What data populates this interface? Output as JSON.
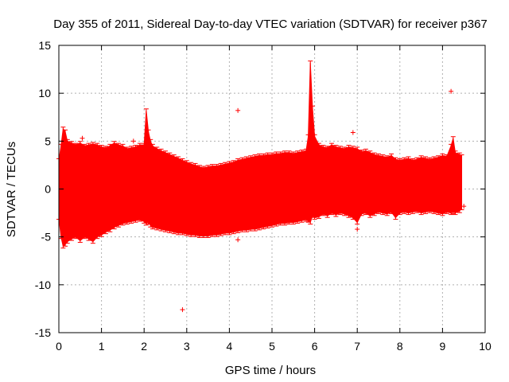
{
  "chart_data": {
    "type": "scatter",
    "title": "Day 355 of 2011, Sidereal Day-to-day VTEC variation (SDTVAR) for receiver p367",
    "xlabel": "GPS time / hours",
    "ylabel": "SDTVAR / TECUs",
    "xlim": [
      0,
      10
    ],
    "ylim": [
      -15,
      15
    ],
    "xticks": [
      "0",
      "1",
      "2",
      "3",
      "4",
      "5",
      "6",
      "7",
      "8",
      "9",
      "10"
    ],
    "yticks": [
      "15",
      "10",
      "5",
      "0",
      "-5",
      "-10",
      "-15"
    ],
    "grid": true,
    "series_color": "#ff0000",
    "series": [
      {
        "name": "SDTVAR",
        "x": [
          0.0,
          0.05,
          0.1,
          0.15,
          0.2,
          0.3,
          0.4,
          0.5,
          0.6,
          0.7,
          0.8,
          0.9,
          1.0,
          1.1,
          1.2,
          1.3,
          1.4,
          1.5,
          1.6,
          1.7,
          1.8,
          1.9,
          2.0,
          2.05,
          2.1,
          2.15,
          2.2,
          2.3,
          2.4,
          2.5,
          2.6,
          2.7,
          2.8,
          2.9,
          3.0,
          3.1,
          3.2,
          3.3,
          3.4,
          3.5,
          3.6,
          3.7,
          3.8,
          3.9,
          4.0,
          4.1,
          4.2,
          4.3,
          4.4,
          4.5,
          4.6,
          4.7,
          4.8,
          4.9,
          5.0,
          5.1,
          5.2,
          5.3,
          5.4,
          5.5,
          5.6,
          5.7,
          5.8,
          5.85,
          5.9,
          5.95,
          6.0,
          6.1,
          6.2,
          6.3,
          6.4,
          6.5,
          6.6,
          6.7,
          6.8,
          6.9,
          7.0,
          7.1,
          7.2,
          7.3,
          7.4,
          7.5,
          7.6,
          7.7,
          7.8,
          7.9,
          8.0,
          8.1,
          8.2,
          8.3,
          8.4,
          8.5,
          8.6,
          8.7,
          8.8,
          8.9,
          9.0,
          9.1,
          9.2,
          9.25,
          9.3,
          9.4,
          9.45
        ],
        "upper": [
          3.0,
          4.5,
          6.3,
          6.0,
          5.0,
          4.8,
          4.6,
          4.8,
          4.5,
          4.6,
          4.7,
          4.6,
          4.4,
          4.3,
          4.5,
          4.8,
          4.6,
          4.5,
          4.2,
          4.3,
          4.4,
          4.6,
          4.6,
          8.2,
          6.0,
          5.0,
          4.5,
          4.2,
          4.0,
          3.8,
          3.6,
          3.4,
          3.2,
          3.0,
          2.8,
          2.6,
          2.5,
          2.3,
          2.2,
          2.3,
          2.4,
          2.4,
          2.5,
          2.6,
          2.7,
          2.8,
          3.0,
          3.1,
          3.2,
          3.3,
          3.4,
          3.5,
          3.5,
          3.6,
          3.6,
          3.7,
          3.7,
          3.8,
          3.8,
          3.7,
          3.8,
          3.9,
          4.0,
          5.5,
          13.2,
          8.5,
          5.5,
          4.6,
          4.4,
          4.3,
          4.6,
          4.4,
          4.3,
          4.2,
          4.4,
          4.3,
          4.2,
          3.9,
          4.0,
          3.8,
          3.6,
          3.5,
          3.4,
          3.3,
          3.5,
          3.1,
          3.0,
          3.1,
          3.2,
          3.0,
          3.1,
          3.3,
          3.2,
          3.1,
          3.2,
          3.3,
          3.5,
          3.4,
          4.5,
          5.3,
          3.8,
          3.6,
          3.4
        ],
        "lower": [
          -3.0,
          -5.0,
          -6.0,
          -5.8,
          -5.5,
          -5.2,
          -5.0,
          -5.4,
          -5.0,
          -5.2,
          -5.5,
          -5.0,
          -4.8,
          -4.5,
          -4.3,
          -4.0,
          -3.8,
          -3.6,
          -3.5,
          -3.4,
          -3.3,
          -3.2,
          -3.4,
          -3.6,
          -3.5,
          -3.8,
          -4.0,
          -4.1,
          -4.2,
          -4.3,
          -4.4,
          -4.5,
          -4.6,
          -4.6,
          -4.7,
          -4.8,
          -4.8,
          -4.9,
          -4.9,
          -4.9,
          -4.8,
          -4.8,
          -4.7,
          -4.6,
          -4.6,
          -4.5,
          -4.4,
          -4.3,
          -4.3,
          -4.2,
          -4.2,
          -4.1,
          -4.0,
          -3.9,
          -3.8,
          -3.7,
          -3.6,
          -3.6,
          -3.5,
          -3.5,
          -3.4,
          -3.3,
          -3.2,
          -3.3,
          -3.5,
          -2.8,
          -3.0,
          -2.9,
          -2.6,
          -2.8,
          -2.5,
          -2.7,
          -2.5,
          -2.6,
          -2.8,
          -3.0,
          -3.5,
          -2.6,
          -2.5,
          -2.8,
          -2.6,
          -2.4,
          -2.5,
          -2.6,
          -2.4,
          -3.0,
          -2.5,
          -2.4,
          -2.5,
          -2.4,
          -2.3,
          -2.5,
          -2.4,
          -2.3,
          -2.4,
          -2.5,
          -2.6,
          -2.4,
          -2.5,
          -2.4,
          -2.5,
          -2.3,
          -2.0
        ]
      }
    ],
    "outliers": [
      {
        "x": 2.9,
        "y": -12.6
      },
      {
        "x": 4.2,
        "y": 8.2
      },
      {
        "x": 4.2,
        "y": -5.3
      },
      {
        "x": 6.9,
        "y": 5.9
      },
      {
        "x": 9.2,
        "y": 10.2
      },
      {
        "x": 7.0,
        "y": -4.2
      },
      {
        "x": 0.55,
        "y": 5.3
      },
      {
        "x": 1.75,
        "y": 5.0
      },
      {
        "x": 9.5,
        "y": -1.8
      }
    ]
  }
}
